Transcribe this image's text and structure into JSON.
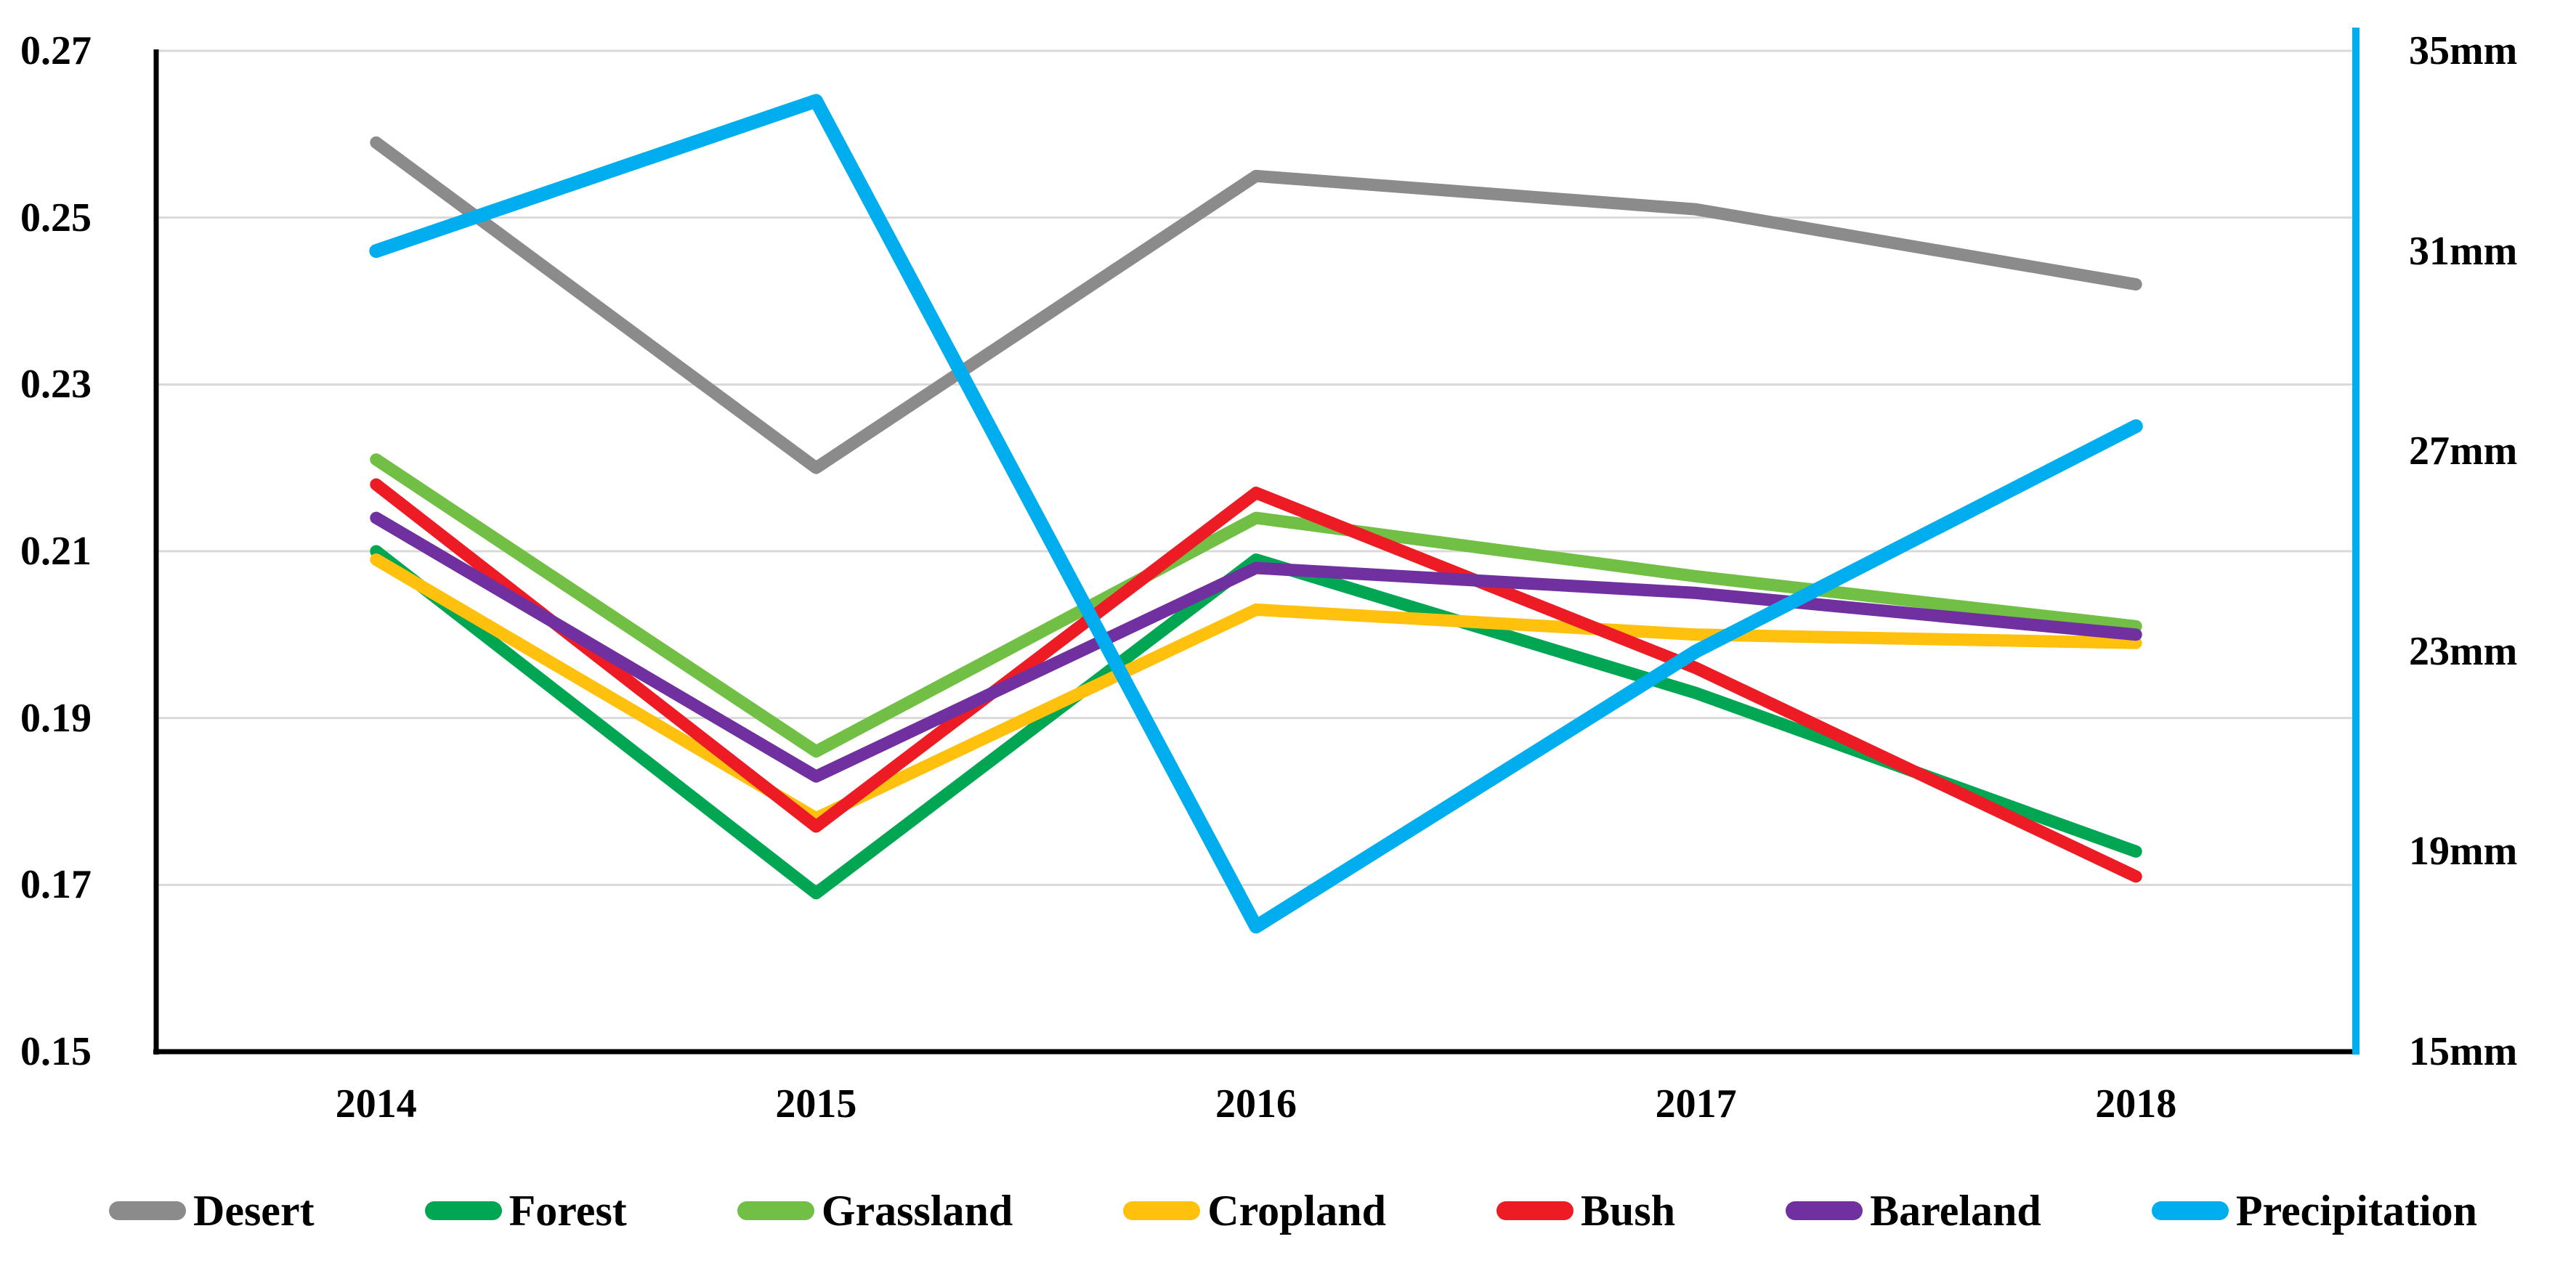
{
  "figure": {
    "background": "#FFFFFF",
    "gridline_color": "#D9D9D9",
    "axis_color": "#000000"
  },
  "chart_data": {
    "type": "line",
    "title": "",
    "xlabel": "",
    "ylabel_left": "",
    "ylabel_right": "",
    "grid": true,
    "legend_position": "bottom",
    "categories": [
      "2014",
      "2015",
      "2016",
      "2017",
      "2018"
    ],
    "series": [
      {
        "name": "Desert",
        "color": "#8B8B8B",
        "axis": "left",
        "values": [
          0.259,
          0.22,
          0.255,
          0.251,
          0.242
        ]
      },
      {
        "name": "Forest",
        "color": "#00A651",
        "axis": "left",
        "values": [
          0.21,
          0.169,
          0.209,
          0.193,
          0.174
        ]
      },
      {
        "name": "Grassland",
        "color": "#71BF45",
        "axis": "left",
        "values": [
          0.221,
          0.186,
          0.214,
          0.207,
          0.201
        ]
      },
      {
        "name": "Cropland",
        "color": "#FFC10E",
        "axis": "left",
        "values": [
          0.209,
          0.178,
          0.203,
          0.2,
          0.199
        ]
      },
      {
        "name": "Bush",
        "color": "#ED1C24",
        "axis": "left",
        "values": [
          0.218,
          0.177,
          0.217,
          0.196,
          0.171
        ]
      },
      {
        "name": "Bareland",
        "color": "#7030A0",
        "axis": "left",
        "values": [
          0.214,
          0.183,
          0.208,
          0.205,
          0.2
        ]
      },
      {
        "name": "Precipitation",
        "color": "#00AEEF",
        "axis": "right",
        "values": [
          31,
          34,
          17.5,
          23,
          27.5
        ]
      }
    ],
    "y_left": {
      "min": 0.15,
      "max": 0.27,
      "tick_step": 0.02,
      "ticks": [
        "0.27",
        "0.25",
        "0.23",
        "0.21",
        "0.19",
        "0.17",
        "0.15"
      ],
      "tick_values": [
        0.27,
        0.25,
        0.23,
        0.21,
        0.19,
        0.17,
        0.15
      ]
    },
    "y_right": {
      "min": 15,
      "max": 35,
      "tick_step": 4,
      "ticks": [
        "35mm",
        "31mm",
        "27mm",
        "23mm",
        "19mm",
        "15mm"
      ],
      "tick_values": [
        35,
        31,
        27,
        23,
        19,
        15
      ]
    }
  }
}
